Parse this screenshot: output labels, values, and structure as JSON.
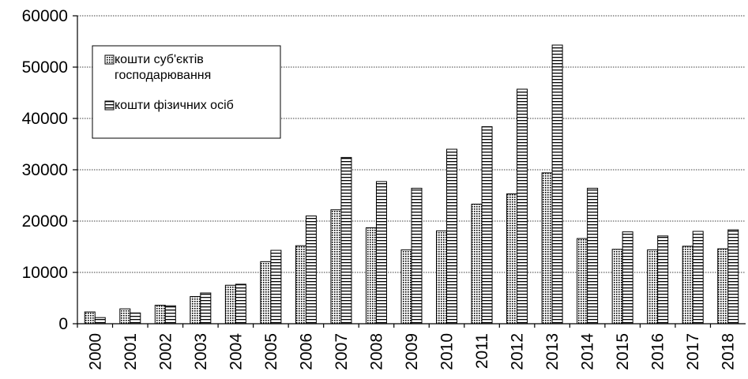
{
  "chart_data": {
    "type": "bar",
    "categories": [
      "2000",
      "2001",
      "2002",
      "2003",
      "2004",
      "2005",
      "2006",
      "2007",
      "2008",
      "2009",
      "2010",
      "2011",
      "2012",
      "2013",
      "2014",
      "2015",
      "2016",
      "2017",
      "2018"
    ],
    "series": [
      {
        "name": "кошти суб'єктів господарювання",
        "values": [
          2300,
          2900,
          3600,
          5300,
          7500,
          12100,
          15200,
          22200,
          18700,
          14400,
          18100,
          23300,
          25300,
          29400,
          16600,
          14500,
          14400,
          15100,
          14600
        ]
      },
      {
        "name": "кошти фізичних осіб",
        "values": [
          1200,
          2100,
          3500,
          6000,
          7700,
          14300,
          21000,
          32400,
          27700,
          26400,
          34000,
          38400,
          45700,
          54300,
          26400,
          17900,
          17100,
          18000,
          18300
        ]
      }
    ],
    "ylim": [
      0,
      60000
    ],
    "yticks": [
      0,
      10000,
      20000,
      30000,
      40000,
      50000,
      60000
    ],
    "grid": true,
    "legend_position": "top-left",
    "legend_lines": [
      [
        "кошти суб'єктів",
        "господарювання"
      ],
      [
        "кошти фізичних осіб"
      ]
    ],
    "colors": {
      "series0_pattern": "dotted",
      "series1_pattern": "horizontal-stripes"
    }
  }
}
